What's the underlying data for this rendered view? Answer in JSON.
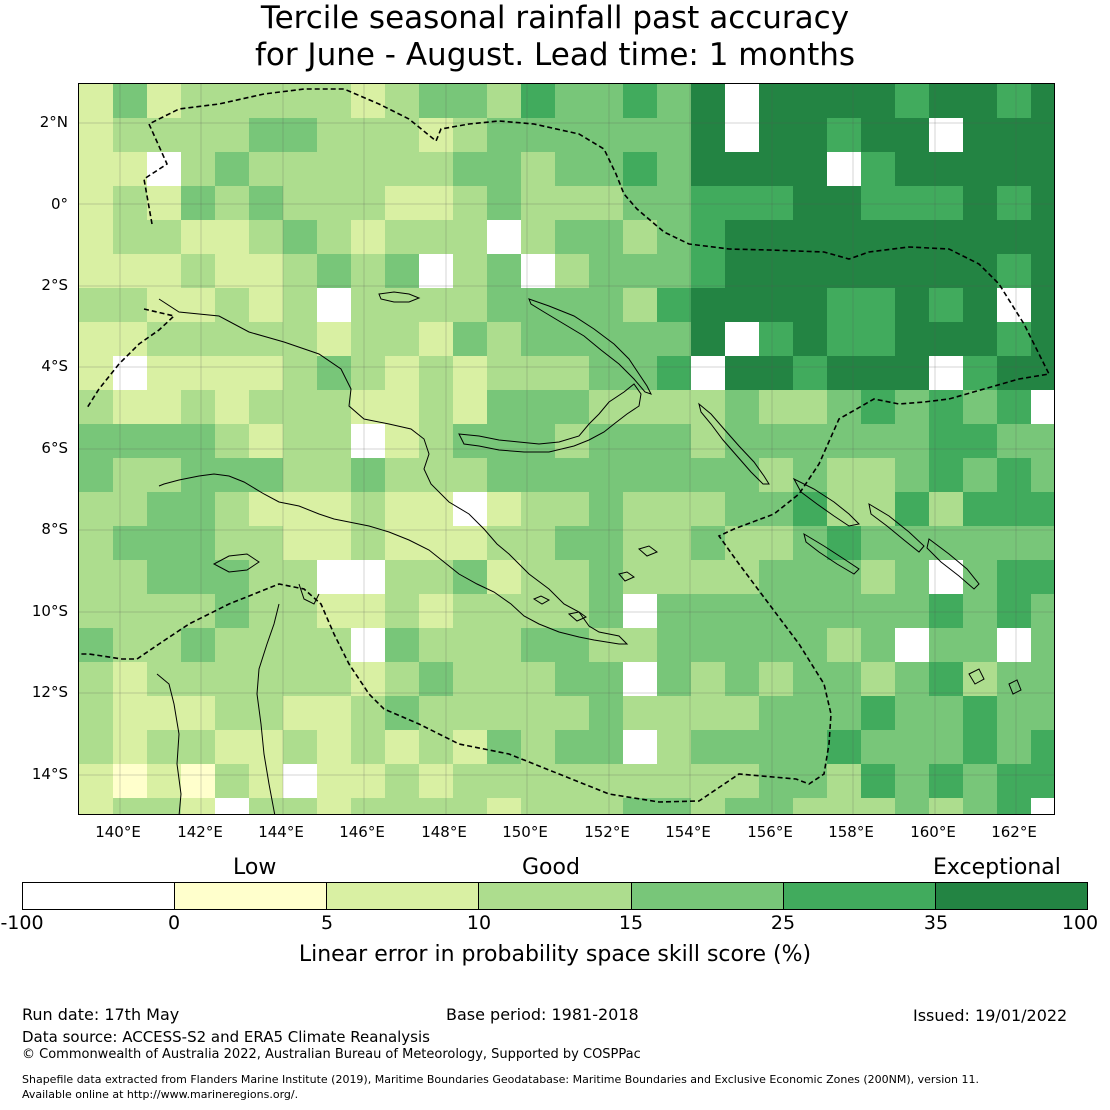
{
  "title": {
    "line1": "Tercile seasonal rainfall past accuracy",
    "line2": "for June - August. Lead time: 1 months"
  },
  "map": {
    "lat_ticks": [
      "2°N",
      "0°",
      "2°S",
      "4°S",
      "6°S",
      "8°S",
      "10°S",
      "12°S",
      "14°S"
    ],
    "lon_ticks": [
      "140°E",
      "142°E",
      "144°E",
      "146°E",
      "148°E",
      "150°E",
      "152°E",
      "154°E",
      "156°E",
      "158°E",
      "160°E",
      "162°E"
    ],
    "grid_lines": true,
    "boundary_style": "dashed EEZ outline",
    "coastline_color": "#000000"
  },
  "legend": {
    "categories": [
      "Low",
      "Good",
      "Exceptional"
    ],
    "ticks": [
      "-100",
      "0",
      "5",
      "10",
      "15",
      "25",
      "35",
      "100"
    ],
    "colors": [
      "#ffffff",
      "#ffffcc",
      "#d9f0a3",
      "#addd8e",
      "#78c679",
      "#41ab5d",
      "#238443"
    ],
    "label": "Linear error in probability space skill score (%)"
  },
  "footer": {
    "run_date": "Run date: 17th May",
    "base_period": "Base period: 1981-2018",
    "issued": "Issued: 19/01/2022",
    "data_source": "Data source: ACCESS-S2 and ERA5 Climate Reanalysis",
    "copyright": "© Commonwealth of Australia 2022, Australian Bureau of Meteorology, Supported by COSPPac",
    "shapefile_line1": "Shapefile data extracted from Flanders Marine Institute (2019), Maritime Boundaries Geodatabase: Maritime Boundaries and Exclusive Economic Zones (200NM), version 11.",
    "shapefile_line2": "Available online at http://www.marineregions.org/."
  }
}
